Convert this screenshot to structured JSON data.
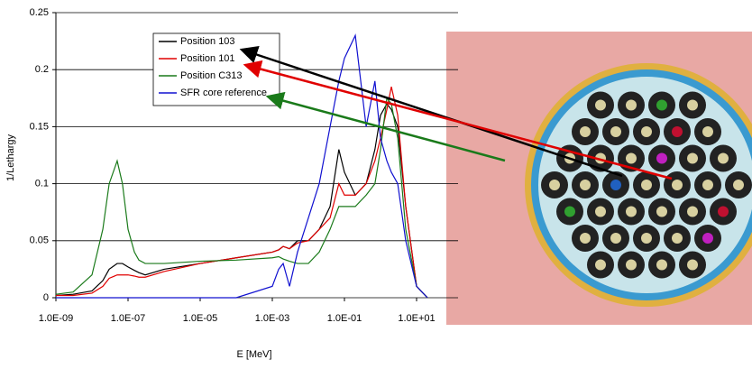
{
  "chart_data": {
    "type": "line",
    "x_label": "E [MeV]",
    "y_label": "1/Lethargy",
    "xscale": "log",
    "grid": true,
    "legend": "upper-left",
    "xlim": [
      1e-09,
      100
    ],
    "ylim": [
      0,
      0.25
    ],
    "xticks": [
      {
        "value": 1e-09,
        "label": "1.0E-09"
      },
      {
        "value": 1e-07,
        "label": "1.0E-07"
      },
      {
        "value": 1e-05,
        "label": "1.0E-05"
      },
      {
        "value": 0.001,
        "label": "1.0E-03"
      },
      {
        "value": 0.1,
        "label": "1.0E-01"
      },
      {
        "value": 10,
        "label": "1.0E+01"
      }
    ],
    "yticks": [
      0,
      0.05,
      0.1,
      0.15,
      0.2,
      0.25
    ],
    "x": [
      1e-09,
      3e-09,
      1e-08,
      2e-08,
      3e-08,
      5e-08,
      7e-08,
      1e-07,
      1.5e-07,
      2e-07,
      3e-07,
      1e-06,
      1e-05,
      0.0001,
      0.001,
      0.0015,
      0.002,
      0.003,
      0.005,
      0.01,
      0.02,
      0.04,
      0.07,
      0.1,
      0.2,
      0.4,
      0.7,
      1,
      1.5,
      2,
      3,
      5,
      10,
      20
    ],
    "series": [
      {
        "name": "Position 103",
        "color": "#000000",
        "values": [
          0.002,
          0.003,
          0.006,
          0.015,
          0.025,
          0.03,
          0.03,
          0.027,
          0.024,
          0.022,
          0.02,
          0.025,
          0.03,
          0.035,
          0.04,
          0.042,
          0.045,
          0.043,
          0.05,
          0.05,
          0.06,
          0.08,
          0.13,
          0.11,
          0.09,
          0.1,
          0.13,
          0.16,
          0.17,
          0.165,
          0.15,
          0.08,
          0.01,
          0
        ]
      },
      {
        "name": "Position 101",
        "color": "#e00000",
        "values": [
          0.002,
          0.002,
          0.004,
          0.01,
          0.017,
          0.02,
          0.02,
          0.02,
          0.019,
          0.018,
          0.018,
          0.023,
          0.03,
          0.035,
          0.04,
          0.042,
          0.045,
          0.043,
          0.048,
          0.05,
          0.06,
          0.07,
          0.1,
          0.09,
          0.09,
          0.1,
          0.12,
          0.14,
          0.165,
          0.185,
          0.16,
          0.08,
          0.01,
          0
        ]
      },
      {
        "name": "Position C313",
        "color": "#1a7a1a",
        "values": [
          0.003,
          0.005,
          0.02,
          0.06,
          0.1,
          0.12,
          0.1,
          0.06,
          0.04,
          0.033,
          0.03,
          0.03,
          0.032,
          0.033,
          0.035,
          0.036,
          0.034,
          0.032,
          0.03,
          0.03,
          0.04,
          0.06,
          0.08,
          0.08,
          0.08,
          0.09,
          0.1,
          0.13,
          0.175,
          0.17,
          0.14,
          0.06,
          0.01,
          0
        ]
      },
      {
        "name": "SFR core reference",
        "color": "#1010d0",
        "values": [
          0,
          0,
          0,
          0,
          0,
          0,
          0,
          0,
          0,
          0,
          0,
          0,
          0,
          0,
          0.01,
          0.025,
          0.03,
          0.01,
          0.04,
          0.07,
          0.1,
          0.15,
          0.19,
          0.21,
          0.23,
          0.15,
          0.19,
          0.14,
          0.12,
          0.11,
          0.1,
          0.05,
          0.01,
          0
        ]
      }
    ]
  }
}
